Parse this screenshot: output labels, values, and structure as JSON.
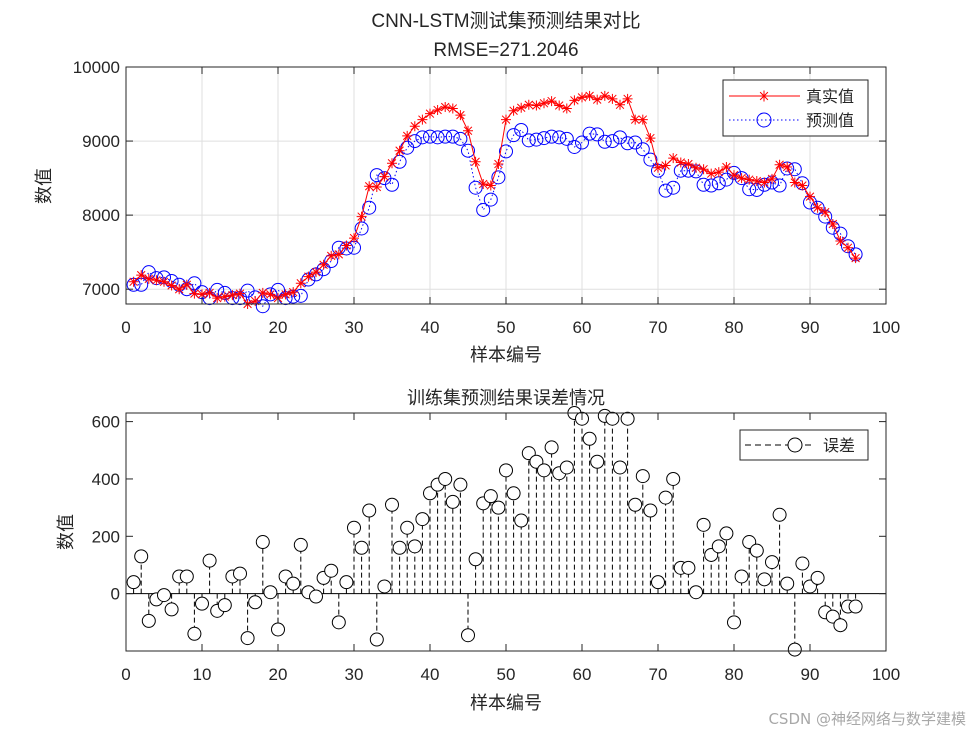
{
  "watermark": "CSDN @神经网络与数学建模",
  "chart_data": [
    {
      "type": "line",
      "title": "CNN-LSTM测试集预测结果对比",
      "subtitle": "RMSE=271.2046",
      "xlabel": "样本编号",
      "ylabel": "数值",
      "xlim": [
        0,
        100
      ],
      "ylim": [
        6800,
        10000
      ],
      "xticks": [
        0,
        10,
        20,
        30,
        40,
        50,
        60,
        70,
        80,
        90,
        100
      ],
      "yticks": [
        7000,
        8000,
        9000,
        10000
      ],
      "grid": true,
      "legend_position": "top-right",
      "x": [
        1,
        2,
        3,
        4,
        5,
        6,
        7,
        8,
        9,
        10,
        11,
        12,
        13,
        14,
        15,
        16,
        17,
        18,
        19,
        20,
        21,
        22,
        23,
        24,
        25,
        26,
        27,
        28,
        29,
        30,
        31,
        32,
        33,
        34,
        35,
        36,
        37,
        38,
        39,
        40,
        41,
        42,
        43,
        44,
        45,
        46,
        47,
        48,
        49,
        50,
        51,
        52,
        53,
        54,
        55,
        56,
        57,
        58,
        59,
        60,
        61,
        62,
        63,
        64,
        65,
        66,
        67,
        68,
        69,
        70,
        71,
        72,
        73,
        74,
        75,
        76,
        77,
        78,
        79,
        80,
        81,
        82,
        83,
        84,
        85,
        86,
        87,
        88,
        89,
        90,
        91,
        92,
        93,
        94,
        95,
        96
      ],
      "series": [
        {
          "name": "真实值",
          "color": "#ff0000",
          "marker": "asterisk",
          "values": [
            7100,
            7190,
            7140,
            7120,
            7100,
            7050,
            7000,
            7060,
            6940,
            6930,
            6950,
            6880,
            6900,
            6920,
            6940,
            6800,
            6840,
            6950,
            6930,
            6880,
            6930,
            6960,
            7080,
            7170,
            7230,
            7330,
            7450,
            7470,
            7590,
            7690,
            7980,
            8390,
            8380,
            8520,
            8700,
            8870,
            9070,
            9200,
            9290,
            9370,
            9420,
            9460,
            9440,
            9350,
            9140,
            8720,
            8420,
            8400,
            8690,
            9290,
            9410,
            9450,
            9490,
            9480,
            9510,
            9540,
            9480,
            9440,
            9550,
            9590,
            9610,
            9560,
            9610,
            9570,
            9490,
            9570,
            9290,
            9290,
            9040,
            8640,
            8670,
            8770,
            8710,
            8690,
            8640,
            8620,
            8560,
            8580,
            8650,
            8540,
            8500,
            8480,
            8460,
            8440,
            8490,
            8680,
            8650,
            8440,
            8400,
            8250,
            8100,
            8040,
            7880,
            7650,
            7560,
            7420
          ]
        },
        {
          "name": "预测值",
          "color": "#0000ff",
          "marker": "circle",
          "values": [
            7060,
            7060,
            7230,
            7150,
            7160,
            7110,
            7060,
            7000,
            7080,
            6960,
            6880,
            6990,
            6950,
            6880,
            6880,
            6980,
            6890,
            6770,
            6930,
            6990,
            6880,
            6900,
            6910,
            7130,
            7200,
            7270,
            7380,
            7560,
            7550,
            7560,
            7820,
            8100,
            8540,
            8500,
            8410,
            8720,
            8910,
            9000,
            9050,
            9060,
            9050,
            9060,
            9060,
            9030,
            8870,
            8370,
            8070,
            8210,
            8510,
            8860,
            9080,
            9150,
            9010,
            9020,
            9040,
            9060,
            9050,
            9030,
            8920,
            8980,
            9100,
            9090,
            8990,
            9000,
            9050,
            8970,
            8980,
            8890,
            8750,
            8600,
            8330,
            8370,
            8600,
            8600,
            8590,
            8410,
            8400,
            8430,
            8480,
            8570,
            8500,
            8350,
            8340,
            8410,
            8440,
            8400,
            8630,
            8620,
            8430,
            8170,
            8100,
            7980,
            7830,
            7750,
            7580,
            7470
          ]
        }
      ]
    },
    {
      "type": "stem",
      "title": "训练集预测结果误差情况",
      "xlabel": "样本编号",
      "ylabel": "数值",
      "xlim": [
        0,
        100
      ],
      "ylim": [
        -200,
        630
      ],
      "xticks": [
        0,
        10,
        20,
        30,
        40,
        50,
        60,
        70,
        80,
        90,
        100
      ],
      "yticks": [
        0,
        200,
        400,
        600
      ],
      "grid": false,
      "legend_position": "top-right",
      "x": [
        1,
        2,
        3,
        4,
        5,
        6,
        7,
        8,
        9,
        10,
        11,
        12,
        13,
        14,
        15,
        16,
        17,
        18,
        19,
        20,
        21,
        22,
        23,
        24,
        25,
        26,
        27,
        28,
        29,
        30,
        31,
        32,
        33,
        34,
        35,
        36,
        37,
        38,
        39,
        40,
        41,
        42,
        43,
        44,
        45,
        46,
        47,
        48,
        49,
        50,
        51,
        52,
        53,
        54,
        55,
        56,
        57,
        58,
        59,
        60,
        61,
        62,
        63,
        64,
        65,
        66,
        67,
        68,
        69,
        70,
        71,
        72,
        73,
        74,
        75,
        76,
        77,
        78,
        79,
        80,
        81,
        82,
        83,
        84,
        85,
        86,
        87,
        88,
        89,
        90,
        91,
        92,
        93,
        94,
        95,
        96
      ],
      "series": [
        {
          "name": "误差",
          "color": "#000000",
          "marker": "circle",
          "values": [
            40,
            130,
            -95,
            -20,
            -5,
            -55,
            60,
            60,
            -140,
            -35,
            115,
            -60,
            -40,
            60,
            70,
            -155,
            -30,
            180,
            5,
            -125,
            60,
            35,
            170,
            5,
            -10,
            55,
            80,
            -100,
            40,
            230,
            160,
            290,
            -160,
            25,
            310,
            160,
            230,
            165,
            260,
            350,
            380,
            400,
            320,
            380,
            -145,
            120,
            315,
            340,
            300,
            430,
            350,
            255,
            490,
            460,
            430,
            510,
            420,
            440,
            630,
            610,
            540,
            460,
            620,
            610,
            440,
            610,
            310,
            410,
            290,
            40,
            335,
            400,
            90,
            90,
            5,
            240,
            135,
            165,
            210,
            -100,
            60,
            180,
            150,
            50,
            110,
            275,
            35,
            -195,
            105,
            25,
            55,
            -65,
            -80,
            -110,
            -45,
            -45
          ]
        }
      ]
    }
  ]
}
